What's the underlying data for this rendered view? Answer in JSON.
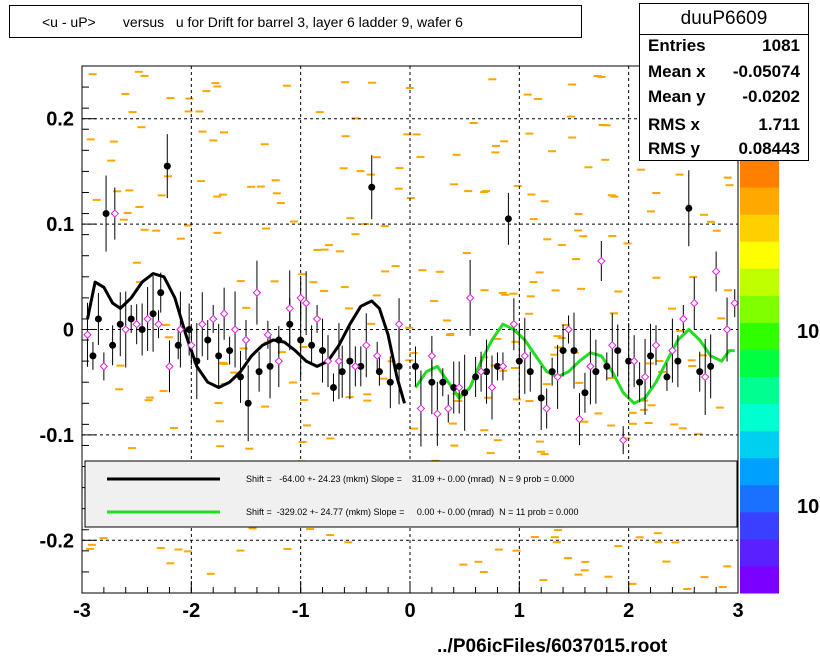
{
  "title": "<u - uP>       versus   u for Drift for barrel 3, layer 6 ladder 9, wafer 6",
  "footer": "../P06icFiles/6037015.root",
  "stats": {
    "name": "duuP6609",
    "rows": [
      {
        "label": "Entries",
        "value": "1081"
      },
      {
        "label": "Mean x",
        "value": "-0.05074"
      },
      {
        "label": "Mean y",
        "value": "-0.0202"
      },
      {
        "label": "RMS x",
        "value": "1.711"
      },
      {
        "label": "RMS y",
        "value": "0.08443"
      }
    ]
  },
  "legend": {
    "entries": [
      {
        "color": "#000000",
        "text": "Shift =   -64.00 +- 24.23 (mkm) Slope =    31.09 +- 0.00 (mrad)  N = 9 prob = 0.000"
      },
      {
        "color": "#22dd22",
        "text": "Shift =  -329.02 +- 24.77 (mkm) Slope =     0.00 +- 0.00 (mrad)  N = 11 prob = 0.000"
      }
    ]
  },
  "colorbar": {
    "labels": [
      "10",
      "10"
    ],
    "colors": [
      "#7a00ff",
      "#5a20ff",
      "#3a40ff",
      "#1a70ff",
      "#00a0ff",
      "#00d0f0",
      "#00ffd0",
      "#00ff90",
      "#00ff40",
      "#30ff00",
      "#80ff00",
      "#c0ff00",
      "#ffff00",
      "#ffd000",
      "#ffa800",
      "#ff8000"
    ]
  },
  "chart_data": {
    "type": "scatter",
    "xlim": [
      -3,
      3
    ],
    "ylim": [
      -0.25,
      0.25
    ],
    "x_ticks": [
      -3,
      -2,
      -1,
      0,
      1,
      2,
      3
    ],
    "y_ticks": [
      -0.2,
      -0.1,
      0,
      0.1,
      0.2
    ],
    "grid": true,
    "series": [
      {
        "marker": "filled-circle",
        "color": "#000000",
        "points": [
          [
            -2.9,
            -0.025
          ],
          [
            -2.85,
            0.01
          ],
          [
            -2.78,
            0.11
          ],
          [
            -2.72,
            -0.015
          ],
          [
            -2.65,
            0.005
          ],
          [
            -2.55,
            0.01
          ],
          [
            -2.45,
            0.0
          ],
          [
            -2.35,
            0.015
          ],
          [
            -2.28,
            0.035
          ],
          [
            -2.22,
            0.155
          ],
          [
            -2.12,
            -0.015
          ],
          [
            -2.02,
            0.0
          ],
          [
            -1.95,
            -0.03
          ],
          [
            -1.85,
            -0.01
          ],
          [
            -1.75,
            -0.025
          ],
          [
            -1.65,
            -0.02
          ],
          [
            -1.55,
            -0.045
          ],
          [
            -1.48,
            -0.07
          ],
          [
            -1.38,
            -0.04
          ],
          [
            -1.28,
            -0.035
          ],
          [
            -1.2,
            -0.01
          ],
          [
            -1.1,
            0.005
          ],
          [
            -1.0,
            -0.01
          ],
          [
            -0.9,
            -0.015
          ],
          [
            -0.8,
            -0.02
          ],
          [
            -0.7,
            -0.055
          ],
          [
            -0.62,
            -0.04
          ],
          [
            -0.55,
            -0.03
          ],
          [
            -0.45,
            -0.035
          ],
          [
            -0.35,
            0.135
          ],
          [
            -0.28,
            -0.04
          ],
          [
            -0.18,
            -0.05
          ],
          [
            -0.1,
            -0.035
          ],
          [
            0.05,
            -0.035
          ],
          [
            0.2,
            -0.05
          ],
          [
            0.3,
            -0.05
          ],
          [
            0.4,
            -0.055
          ],
          [
            0.5,
            -0.06
          ],
          [
            0.6,
            -0.045
          ],
          [
            0.7,
            -0.04
          ],
          [
            0.8,
            -0.035
          ],
          [
            0.9,
            0.105
          ],
          [
            1.0,
            -0.03
          ],
          [
            1.1,
            -0.04
          ],
          [
            1.2,
            -0.065
          ],
          [
            1.3,
            -0.04
          ],
          [
            1.4,
            -0.02
          ],
          [
            1.5,
            -0.02
          ],
          [
            1.6,
            -0.06
          ],
          [
            1.7,
            -0.04
          ],
          [
            1.8,
            -0.035
          ],
          [
            1.9,
            -0.02
          ],
          [
            2.0,
            -0.03
          ],
          [
            2.1,
            -0.05
          ],
          [
            2.2,
            -0.025
          ],
          [
            2.35,
            -0.045
          ],
          [
            2.45,
            -0.03
          ],
          [
            2.55,
            0.115
          ],
          [
            2.65,
            -0.04
          ],
          [
            2.75,
            -0.035
          ]
        ]
      },
      {
        "marker": "open-diamond",
        "color": "#dd22dd",
        "points": [
          [
            -2.95,
            -0.005
          ],
          [
            -2.8,
            -0.035
          ],
          [
            -2.7,
            0.11
          ],
          [
            -2.6,
            0.0
          ],
          [
            -2.5,
            0.005
          ],
          [
            -2.4,
            0.01
          ],
          [
            -2.3,
            0.005
          ],
          [
            -2.2,
            -0.035
          ],
          [
            -2.1,
            0.0
          ],
          [
            -2.0,
            -0.015
          ],
          [
            -1.9,
            0.005
          ],
          [
            -1.8,
            0.01
          ],
          [
            -1.7,
            0.015
          ],
          [
            -1.6,
            0.0
          ],
          [
            -1.5,
            -0.01
          ],
          [
            -1.4,
            0.035
          ],
          [
            -1.3,
            -0.005
          ],
          [
            -1.2,
            -0.03
          ],
          [
            -1.1,
            0.02
          ],
          [
            -1.0,
            0.03
          ],
          [
            -0.95,
            0.025
          ],
          [
            -0.85,
            0.01
          ],
          [
            -0.75,
            -0.03
          ],
          [
            -0.65,
            -0.03
          ],
          [
            -0.5,
            -0.035
          ],
          [
            -0.4,
            -0.015
          ],
          [
            -0.3,
            -0.025
          ],
          [
            -0.1,
            0.005
          ],
          [
            0.1,
            -0.075
          ],
          [
            0.2,
            -0.025
          ],
          [
            0.25,
            -0.08
          ],
          [
            0.35,
            -0.075
          ],
          [
            0.45,
            -0.055
          ],
          [
            0.55,
            0.03
          ],
          [
            0.65,
            -0.04
          ],
          [
            0.75,
            -0.055
          ],
          [
            0.85,
            -0.035
          ],
          [
            0.95,
            0.005
          ],
          [
            1.05,
            -0.025
          ],
          [
            1.25,
            -0.075
          ],
          [
            1.35,
            -0.045
          ],
          [
            1.45,
            0.0
          ],
          [
            1.55,
            -0.085
          ],
          [
            1.65,
            -0.035
          ],
          [
            1.75,
            0.065
          ],
          [
            1.85,
            -0.015
          ],
          [
            1.95,
            -0.105
          ],
          [
            2.05,
            -0.03
          ],
          [
            2.15,
            -0.045
          ],
          [
            2.25,
            -0.015
          ],
          [
            2.4,
            -0.02
          ],
          [
            2.5,
            0.01
          ],
          [
            2.6,
            0.025
          ],
          [
            2.7,
            -0.045
          ],
          [
            2.8,
            0.055
          ],
          [
            2.9,
            0.0
          ],
          [
            2.97,
            0.025
          ]
        ]
      }
    ],
    "fits": [
      {
        "color": "#000000",
        "x_range": [
          -2.95,
          -0.05
        ],
        "points": [
          [
            -2.95,
            0.01
          ],
          [
            -2.88,
            0.045
          ],
          [
            -2.8,
            0.04
          ],
          [
            -2.72,
            0.025
          ],
          [
            -2.65,
            0.02
          ],
          [
            -2.55,
            0.03
          ],
          [
            -2.45,
            0.045
          ],
          [
            -2.35,
            0.053
          ],
          [
            -2.25,
            0.05
          ],
          [
            -2.15,
            0.03
          ],
          [
            -2.05,
            -0.005
          ],
          [
            -1.95,
            -0.035
          ],
          [
            -1.85,
            -0.05
          ],
          [
            -1.75,
            -0.055
          ],
          [
            -1.65,
            -0.05
          ],
          [
            -1.55,
            -0.04
          ],
          [
            -1.45,
            -0.025
          ],
          [
            -1.35,
            -0.015
          ],
          [
            -1.25,
            -0.01
          ],
          [
            -1.15,
            -0.012
          ],
          [
            -1.05,
            -0.02
          ],
          [
            -0.95,
            -0.03
          ],
          [
            -0.85,
            -0.035
          ],
          [
            -0.75,
            -0.03
          ],
          [
            -0.65,
            -0.015
          ],
          [
            -0.55,
            0.005
          ],
          [
            -0.45,
            0.022
          ],
          [
            -0.35,
            0.027
          ],
          [
            -0.28,
            0.02
          ],
          [
            -0.2,
            -0.005
          ],
          [
            -0.12,
            -0.045
          ],
          [
            -0.05,
            -0.07
          ]
        ]
      },
      {
        "color": "#22dd22",
        "x_range": [
          0.05,
          2.97
        ],
        "points": [
          [
            0.05,
            -0.055
          ],
          [
            0.15,
            -0.04
          ],
          [
            0.25,
            -0.035
          ],
          [
            0.35,
            -0.05
          ],
          [
            0.45,
            -0.065
          ],
          [
            0.55,
            -0.055
          ],
          [
            0.65,
            -0.03
          ],
          [
            0.75,
            -0.01
          ],
          [
            0.85,
            0.005
          ],
          [
            0.95,
            0.0
          ],
          [
            1.05,
            -0.01
          ],
          [
            1.15,
            -0.025
          ],
          [
            1.25,
            -0.04
          ],
          [
            1.35,
            -0.045
          ],
          [
            1.45,
            -0.04
          ],
          [
            1.55,
            -0.03
          ],
          [
            1.65,
            -0.022
          ],
          [
            1.75,
            -0.025
          ],
          [
            1.85,
            -0.04
          ],
          [
            1.95,
            -0.06
          ],
          [
            2.05,
            -0.07
          ],
          [
            2.15,
            -0.065
          ],
          [
            2.25,
            -0.05
          ],
          [
            2.35,
            -0.03
          ],
          [
            2.45,
            -0.01
          ],
          [
            2.55,
            0.0
          ],
          [
            2.65,
            -0.01
          ],
          [
            2.75,
            -0.025
          ],
          [
            2.85,
            -0.03
          ],
          [
            2.92,
            -0.02
          ],
          [
            2.97,
            -0.02
          ]
        ]
      }
    ]
  }
}
